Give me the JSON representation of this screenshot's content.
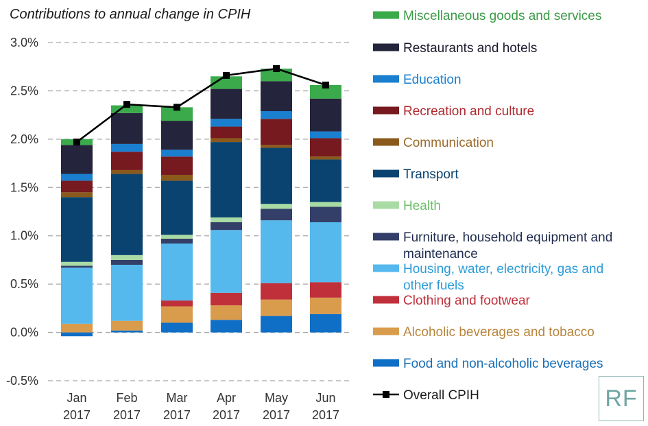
{
  "chart_data": {
    "type": "bar",
    "stacked": true,
    "title": "Contributions to annual change in CPIH",
    "categories": [
      {
        "month": "Jan",
        "year": "2017"
      },
      {
        "month": "Feb",
        "year": "2017"
      },
      {
        "month": "Mar",
        "year": "2017"
      },
      {
        "month": "Apr",
        "year": "2017"
      },
      {
        "month": "May",
        "year": "2017"
      },
      {
        "month": "Jun",
        "year": "2017"
      }
    ],
    "ylim": [
      -0.5,
      3.0
    ],
    "yticks": [
      "3.0%",
      "2.5%",
      "2.0%",
      "1.5%",
      "1.0%",
      "0.5%",
      "0.0%",
      "-0.5%"
    ],
    "ytick_values": [
      3.0,
      2.5,
      2.0,
      1.5,
      1.0,
      0.5,
      0.0,
      -0.5
    ],
    "grid": true,
    "legend_position": "right",
    "series": [
      {
        "name": "Food and non-alcoholic beverages",
        "color": "#0f6fc6",
        "text_color": "#1a6fb5",
        "values": [
          -0.04,
          0.02,
          0.1,
          0.13,
          0.17,
          0.19
        ]
      },
      {
        "name": "Alcoholic beverages and tobacco",
        "color": "#d99c4c",
        "text_color": "#b8863d",
        "values": [
          0.09,
          0.1,
          0.17,
          0.15,
          0.17,
          0.17
        ]
      },
      {
        "name": "Clothing and footwear",
        "color": "#c0303b",
        "text_color": "#c0303b",
        "values": [
          0.0,
          0.0,
          0.06,
          0.13,
          0.17,
          0.16
        ]
      },
      {
        "name": "Housing, water, electricity, gas and other fuels",
        "color": "#55b9ee",
        "text_color": "#2a9bd8",
        "values": [
          0.58,
          0.58,
          0.59,
          0.65,
          0.65,
          0.62
        ]
      },
      {
        "name": "Furniture, household equipment and maintenance",
        "color": "#333f68",
        "text_color": "#1f2b4d",
        "values": [
          0.02,
          0.05,
          0.05,
          0.08,
          0.12,
          0.16
        ]
      },
      {
        "name": "Health",
        "color": "#a8dca4",
        "text_color": "#6fbf6a",
        "values": [
          0.04,
          0.05,
          0.04,
          0.05,
          0.05,
          0.05
        ]
      },
      {
        "name": "Transport",
        "color": "#0a4370",
        "text_color": "#0a4370",
        "values": [
          0.67,
          0.84,
          0.56,
          0.78,
          0.58,
          0.44
        ]
      },
      {
        "name": "Communication",
        "color": "#8a5a1c",
        "text_color": "#9b6b2a",
        "values": [
          0.05,
          0.04,
          0.06,
          0.04,
          0.03,
          0.03
        ]
      },
      {
        "name": "Recreation and culture",
        "color": "#761a1f",
        "text_color": "#b02a30",
        "values": [
          0.12,
          0.19,
          0.19,
          0.12,
          0.27,
          0.19
        ]
      },
      {
        "name": "Education",
        "color": "#1a7fcf",
        "text_color": "#1a7fcf",
        "values": [
          0.07,
          0.08,
          0.07,
          0.08,
          0.08,
          0.07
        ]
      },
      {
        "name": "Restaurants and hotels",
        "color": "#24243d",
        "text_color": "#1a1a2e",
        "values": [
          0.3,
          0.32,
          0.3,
          0.31,
          0.31,
          0.34
        ]
      },
      {
        "name": "Miscellaneous goods and services",
        "color": "#3aaa4a",
        "text_color": "#3a9a46",
        "values": [
          0.06,
          0.08,
          0.14,
          0.13,
          0.13,
          0.14
        ]
      }
    ],
    "line": {
      "name": "Overall CPIH",
      "color": "#000000",
      "values": [
        1.97,
        2.36,
        2.33,
        2.66,
        2.73,
        2.56
      ]
    }
  },
  "logo": {
    "text": "RF"
  }
}
